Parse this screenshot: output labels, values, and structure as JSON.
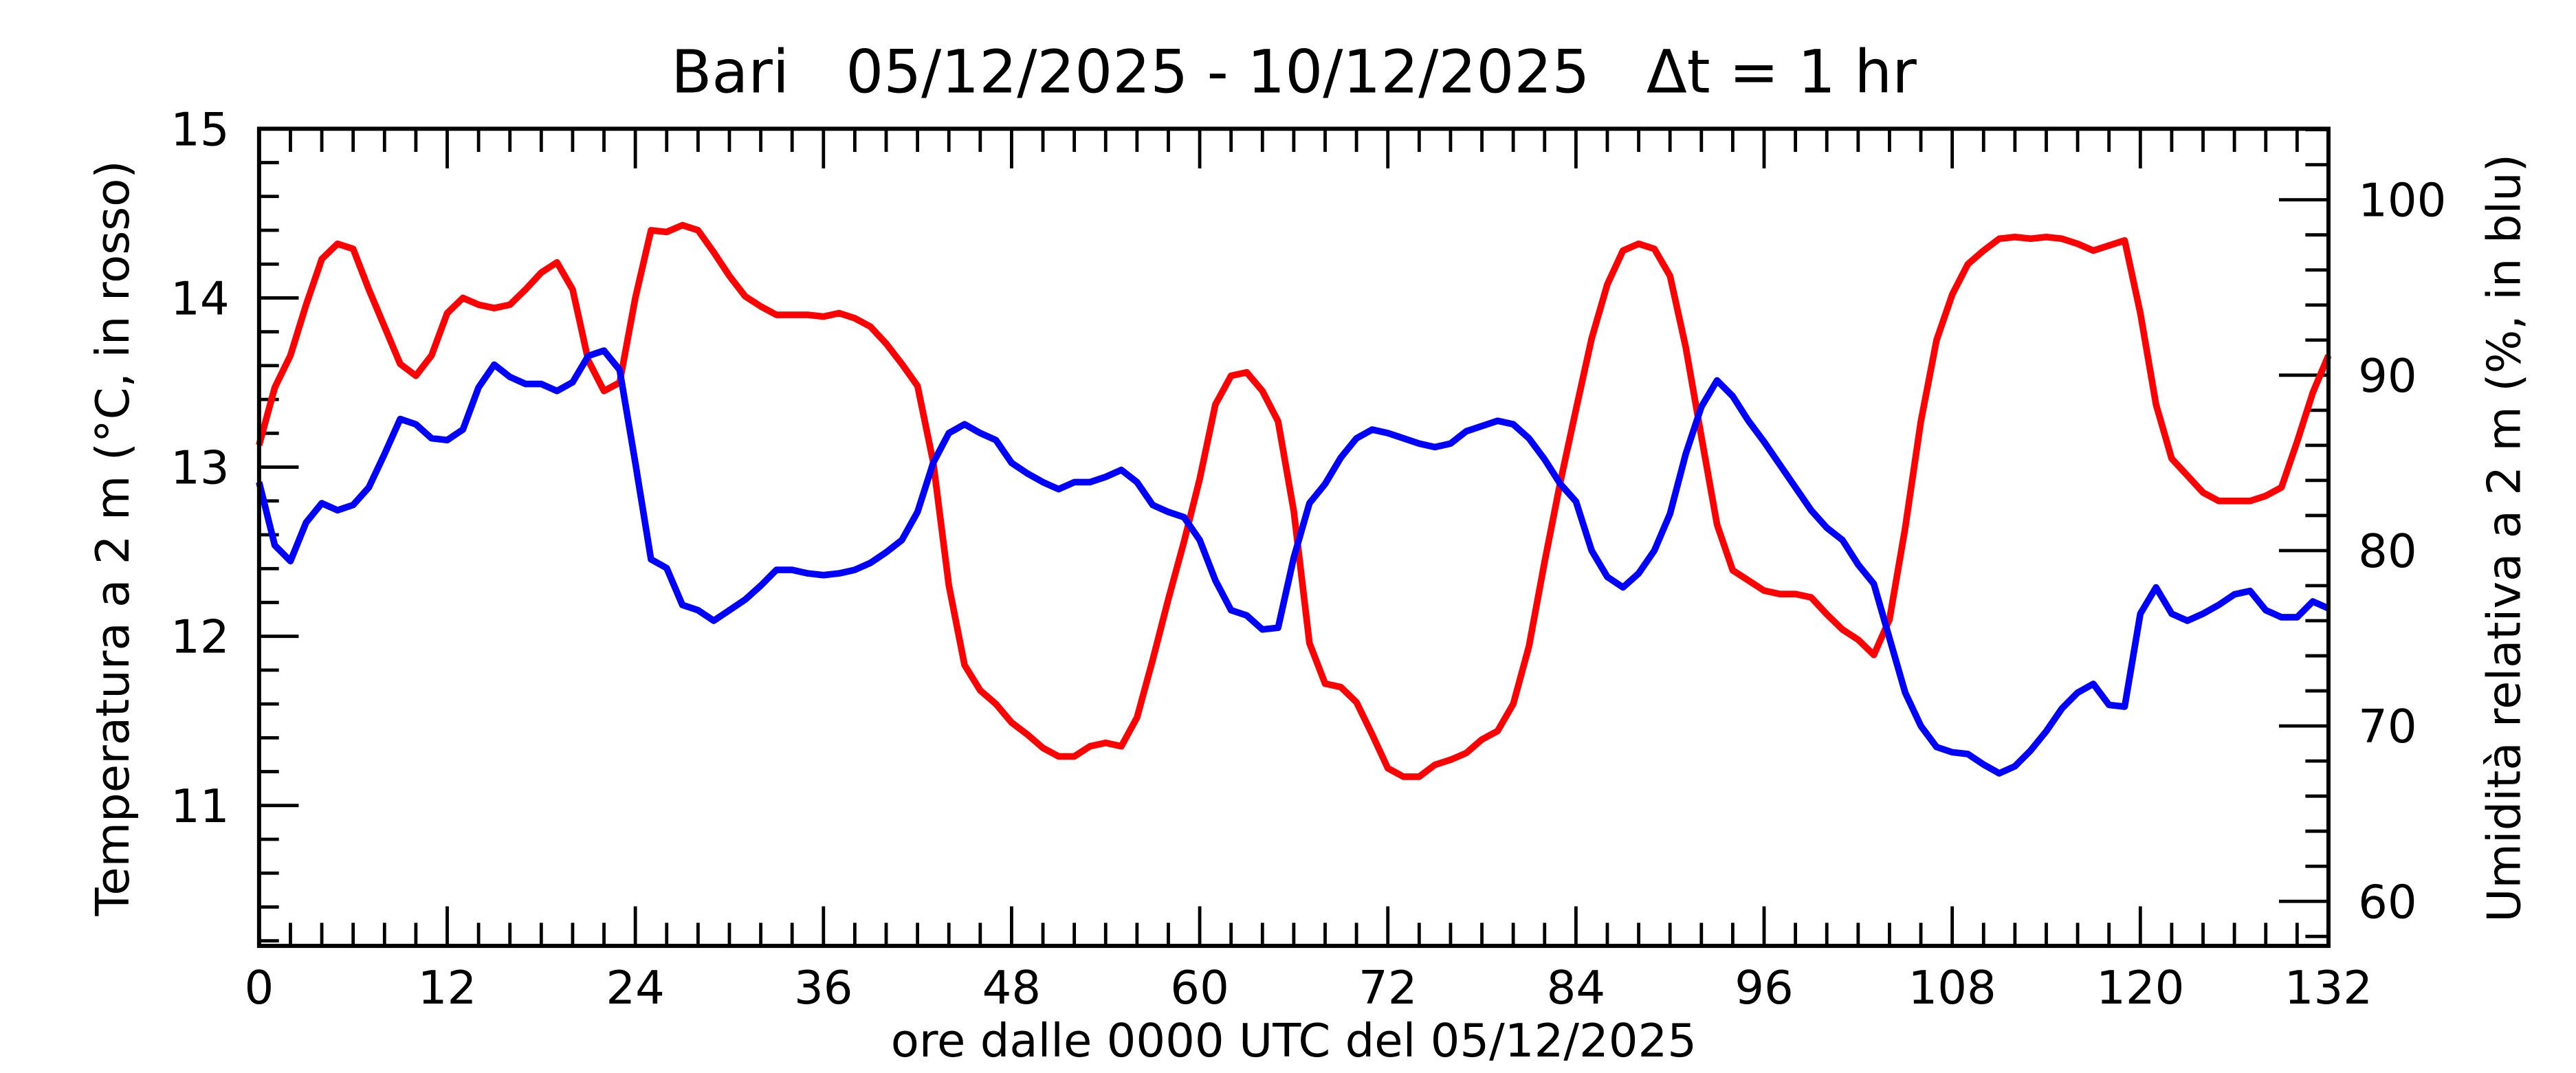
{
  "chart_data": {
    "type": "line",
    "title": "Bari   05/12/2025 - 10/12/2025   Δt = 1 hr",
    "xlabel": "ore dalle 0000 UTC del 05/12/2025",
    "ylabel": "Temperatura a 2 m (°C, in rosso)",
    "y2label": "Umidità relativa a 2 m (%, in blu)",
    "x": [
      0,
      1,
      2,
      3,
      4,
      5,
      6,
      7,
      8,
      9,
      10,
      11,
      12,
      13,
      14,
      15,
      16,
      17,
      18,
      19,
      20,
      21,
      22,
      23,
      24,
      25,
      26,
      27,
      28,
      29,
      30,
      31,
      32,
      33,
      34,
      35,
      36,
      37,
      38,
      39,
      40,
      41,
      42,
      43,
      44,
      45,
      46,
      47,
      48,
      49,
      50,
      51,
      52,
      53,
      54,
      55,
      56,
      57,
      58,
      59,
      60,
      61,
      62,
      63,
      64,
      65,
      66,
      67,
      68,
      69,
      70,
      71,
      72,
      73,
      74,
      75,
      76,
      77,
      78,
      79,
      80,
      81,
      82,
      83,
      84,
      85,
      86,
      87,
      88,
      89,
      90,
      91,
      92,
      93,
      94,
      95,
      96,
      97,
      98,
      99,
      100,
      101,
      102,
      103,
      104,
      105,
      106,
      107,
      108,
      109,
      110,
      111,
      112,
      113,
      114,
      115,
      116,
      117,
      118,
      119,
      120,
      121,
      122,
      123,
      124,
      125,
      126,
      127,
      128,
      129,
      130,
      131,
      132
    ],
    "series": [
      {
        "name": "Temperatura",
        "color": "#ff0000",
        "values": [
          13.13,
          13.47,
          13.66,
          13.96,
          14.23,
          14.32,
          14.29,
          14.05,
          13.83,
          13.61,
          13.54,
          13.66,
          13.91,
          14.0,
          13.96,
          13.94,
          13.96,
          14.05,
          14.15,
          14.21,
          14.05,
          13.63,
          13.45,
          13.5,
          14.0,
          14.4,
          14.39,
          14.43,
          14.4,
          14.27,
          14.13,
          14.01,
          13.95,
          13.9,
          13.9,
          13.9,
          13.89,
          13.91,
          13.88,
          13.83,
          13.73,
          13.61,
          13.48,
          13.03,
          12.3,
          11.83,
          11.68,
          11.6,
          11.49,
          11.42,
          11.34,
          11.29,
          11.29,
          11.35,
          11.37,
          11.35,
          11.52,
          11.86,
          12.22,
          12.56,
          12.93,
          13.37,
          13.54,
          13.56,
          13.45,
          13.27,
          12.74,
          11.96,
          11.72,
          11.7,
          11.61,
          11.42,
          11.22,
          11.17,
          11.17,
          11.24,
          11.27,
          11.31,
          11.39,
          11.44,
          11.6,
          11.94,
          12.44,
          12.91,
          13.34,
          13.76,
          14.08,
          14.28,
          14.32,
          14.29,
          14.13,
          13.71,
          13.18,
          12.66,
          12.39,
          12.33,
          12.27,
          12.25,
          12.25,
          12.23,
          12.13,
          12.04,
          11.98,
          11.89,
          12.1,
          12.64,
          13.27,
          13.75,
          14.02,
          14.2,
          14.28,
          14.35,
          14.36,
          14.35,
          14.36,
          14.35,
          14.32,
          14.28,
          14.31,
          14.34,
          13.91,
          13.37,
          13.05,
          12.95,
          12.85,
          12.8,
          12.8,
          12.8,
          12.83,
          12.88,
          13.15,
          13.44,
          13.66
        ]
      },
      {
        "name": "Umidità",
        "color": "#0000ff",
        "axis": "y2",
        "values": [
          83.9,
          80.3,
          79.4,
          81.6,
          82.7,
          82.3,
          82.6,
          83.6,
          85.5,
          87.5,
          87.2,
          86.4,
          86.3,
          86.9,
          89.3,
          90.6,
          89.9,
          89.5,
          89.5,
          89.1,
          89.6,
          91.1,
          91.4,
          90.3,
          85.0,
          79.5,
          79.0,
          76.9,
          76.6,
          76.0,
          76.6,
          77.2,
          78.0,
          78.9,
          78.9,
          78.7,
          78.6,
          78.7,
          78.9,
          79.3,
          79.9,
          80.6,
          82.2,
          85.0,
          86.7,
          87.2,
          86.7,
          86.3,
          85.0,
          84.4,
          83.9,
          83.5,
          83.9,
          83.9,
          84.2,
          84.6,
          83.9,
          82.6,
          82.2,
          81.9,
          80.6,
          78.3,
          76.6,
          76.3,
          75.5,
          75.6,
          79.6,
          82.7,
          83.8,
          85.3,
          86.4,
          86.9,
          86.7,
          86.4,
          86.1,
          85.9,
          86.1,
          86.8,
          87.1,
          87.4,
          87.2,
          86.4,
          85.2,
          83.8,
          82.8,
          80.0,
          78.5,
          77.9,
          78.7,
          80.0,
          82.1,
          85.5,
          88.2,
          89.7,
          88.8,
          87.4,
          86.2,
          84.9,
          83.6,
          82.3,
          81.3,
          80.6,
          79.2,
          78.1,
          75.0,
          71.9,
          70.0,
          68.8,
          68.5,
          68.4,
          67.8,
          67.3,
          67.7,
          68.6,
          69.7,
          71.0,
          71.9,
          72.4,
          71.2,
          71.1,
          76.4,
          77.9,
          76.4,
          76.0,
          76.4,
          76.9,
          77.5,
          77.7,
          76.6,
          76.2,
          76.2,
          77.1,
          76.7
        ]
      }
    ],
    "xlim": [
      0,
      132
    ],
    "xticks": [
      0,
      12,
      24,
      36,
      48,
      60,
      72,
      84,
      96,
      108,
      120,
      132
    ],
    "xminorticks": [
      2,
      4,
      6,
      8,
      10,
      14,
      16,
      18,
      20,
      22,
      26,
      28,
      30,
      32,
      34,
      38,
      40,
      42,
      44,
      46,
      50,
      52,
      54,
      56,
      58,
      62,
      64,
      66,
      68,
      70,
      74,
      76,
      78,
      80,
      82,
      86,
      88,
      90,
      92,
      94,
      98,
      100,
      102,
      104,
      106,
      110,
      112,
      114,
      116,
      118,
      122,
      124,
      126,
      128,
      130
    ],
    "ylim": [
      10.17,
      15
    ],
    "yticks": [
      11,
      12,
      13,
      14,
      15
    ],
    "yminorticks": [
      10.2,
      10.4,
      10.6,
      10.8,
      11.2,
      11.4,
      11.6,
      11.8,
      12.2,
      12.4,
      12.6,
      12.8,
      13.2,
      13.4,
      13.6,
      13.8,
      14.2,
      14.4,
      14.6,
      14.8
    ],
    "y2lim": [
      57.46,
      104.05
    ],
    "y2ticks": [
      60,
      70,
      80,
      90,
      100
    ],
    "y2minorticks": [
      58,
      62,
      64,
      66,
      68,
      72,
      74,
      76,
      78,
      82,
      84,
      86,
      88,
      92,
      94,
      96,
      98,
      102,
      104
    ]
  }
}
